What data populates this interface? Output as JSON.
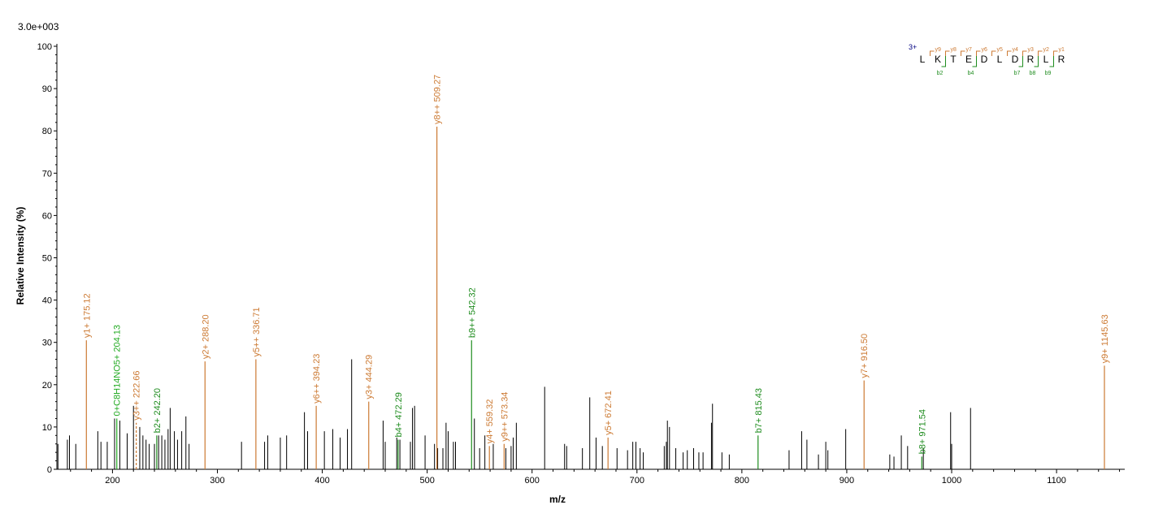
{
  "chart_data": {
    "type": "bar",
    "scale_label": "3.0e+003",
    "xlabel": "m/z",
    "ylabel": "Relative   Intensity (%)",
    "xlim": [
      147,
      1165
    ],
    "ylim": [
      0,
      100
    ],
    "x_ticks": [
      200,
      300,
      400,
      500,
      600,
      700,
      800,
      900,
      1000,
      1100
    ],
    "y_ticks": [
      0,
      10,
      20,
      30,
      40,
      50,
      60,
      70,
      80,
      90,
      100
    ],
    "colors": {
      "y_ion": "#cc7a33",
      "b_ion": "#1e8c1e",
      "other": "#000000",
      "special": "#22aa22"
    },
    "annotated_peaks": [
      {
        "mz": 175.12,
        "intensity": 30.5,
        "label": "y1+ 175.12",
        "ion": "y"
      },
      {
        "mz": 204.13,
        "intensity": 12.0,
        "label": "0+C8H14NO5+ 204.13",
        "ion": "special"
      },
      {
        "mz": 222.66,
        "intensity": 11.0,
        "label": "y3++ 222.66",
        "ion": "y",
        "dashed": true
      },
      {
        "mz": 242.2,
        "intensity": 8.0,
        "label": "b2+ 242.20",
        "ion": "b"
      },
      {
        "mz": 288.2,
        "intensity": 25.5,
        "label": "y2+ 288.20",
        "ion": "y"
      },
      {
        "mz": 336.71,
        "intensity": 26.0,
        "label": "y5++ 336.71",
        "ion": "y"
      },
      {
        "mz": 394.23,
        "intensity": 15.0,
        "label": "y6++ 394.23",
        "ion": "y"
      },
      {
        "mz": 444.29,
        "intensity": 16.0,
        "label": "y3+ 444.29",
        "ion": "y"
      },
      {
        "mz": 472.29,
        "intensity": 7.0,
        "label": "b4+ 472.29",
        "ion": "b"
      },
      {
        "mz": 509.27,
        "intensity": 81.0,
        "label": "y8++ 509.27",
        "ion": "y"
      },
      {
        "mz": 542.32,
        "intensity": 30.5,
        "label": "b9++ 542.32",
        "ion": "b"
      },
      {
        "mz": 559.32,
        "intensity": 5.5,
        "label": "y4+ 559.32",
        "ion": "y"
      },
      {
        "mz": 573.34,
        "intensity": 6.0,
        "label": "y9++ 573.34",
        "ion": "y"
      },
      {
        "mz": 672.41,
        "intensity": 7.5,
        "label": "y5+ 672.41",
        "ion": "y"
      },
      {
        "mz": 815.43,
        "intensity": 8.0,
        "label": "b7+ 815.43",
        "ion": "b"
      },
      {
        "mz": 916.5,
        "intensity": 21.0,
        "label": "y7+ 916.50",
        "ion": "y"
      },
      {
        "mz": 971.54,
        "intensity": 3.0,
        "label": "b8+ 971.54",
        "ion": "b"
      },
      {
        "mz": 1145.63,
        "intensity": 24.5,
        "label": "y9+ 1145.63",
        "ion": "y"
      }
    ],
    "other_peaks": [
      [
        148,
        6
      ],
      [
        157,
        7
      ],
      [
        159,
        8
      ],
      [
        165,
        6
      ],
      [
        186,
        9
      ],
      [
        189,
        6.5
      ],
      [
        195,
        6.5
      ],
      [
        202,
        12
      ],
      [
        207,
        11.5
      ],
      [
        214,
        8.5
      ],
      [
        220,
        15
      ],
      [
        226,
        10
      ],
      [
        229,
        8
      ],
      [
        232,
        7
      ],
      [
        235,
        6
      ],
      [
        240,
        6
      ],
      [
        244,
        8
      ],
      [
        247,
        8
      ],
      [
        250,
        7
      ],
      [
        253,
        9.5
      ],
      [
        255,
        14.5
      ],
      [
        259,
        9
      ],
      [
        262,
        7
      ],
      [
        266,
        9
      ],
      [
        270,
        12.5
      ],
      [
        273,
        6
      ],
      [
        323,
        6.5
      ],
      [
        345,
        6.5
      ],
      [
        348,
        8
      ],
      [
        360,
        7.5
      ],
      [
        366,
        8
      ],
      [
        383,
        13.5
      ],
      [
        386,
        9
      ],
      [
        402,
        9
      ],
      [
        410,
        9.5
      ],
      [
        417,
        7.5
      ],
      [
        424,
        9.5
      ],
      [
        428,
        26
      ],
      [
        458,
        11.5
      ],
      [
        460,
        6.5
      ],
      [
        471,
        7.5
      ],
      [
        474,
        7
      ],
      [
        484,
        6.5
      ],
      [
        486,
        14.5
      ],
      [
        488,
        15
      ],
      [
        498,
        8
      ],
      [
        507,
        6
      ],
      [
        510,
        5
      ],
      [
        515,
        5
      ],
      [
        518,
        11
      ],
      [
        520,
        9
      ],
      [
        525,
        6.5
      ],
      [
        527,
        6.5
      ],
      [
        545,
        12
      ],
      [
        550,
        5
      ],
      [
        555,
        8
      ],
      [
        563,
        6
      ],
      [
        575,
        5
      ],
      [
        580,
        5.5
      ],
      [
        582,
        7.5
      ],
      [
        585,
        11
      ],
      [
        612,
        19.5
      ],
      [
        631,
        6
      ],
      [
        633,
        5.5
      ],
      [
        648,
        5
      ],
      [
        655,
        17
      ],
      [
        661,
        7.5
      ],
      [
        667,
        5.5
      ],
      [
        681,
        5
      ],
      [
        691,
        4.5
      ],
      [
        696,
        6.5
      ],
      [
        699,
        6.5
      ],
      [
        703,
        5
      ],
      [
        706,
        4
      ],
      [
        726,
        5.5
      ],
      [
        728,
        6.5
      ],
      [
        729,
        11.5
      ],
      [
        731,
        10
      ],
      [
        737,
        5
      ],
      [
        744,
        4
      ],
      [
        748,
        4.5
      ],
      [
        754,
        5
      ],
      [
        759,
        4
      ],
      [
        763,
        4
      ],
      [
        771,
        11
      ],
      [
        772,
        15.5
      ],
      [
        781,
        4
      ],
      [
        788,
        3.5
      ],
      [
        845,
        4.5
      ],
      [
        857,
        9
      ],
      [
        862,
        7
      ],
      [
        873,
        3.5
      ],
      [
        880,
        6.5
      ],
      [
        882,
        4.5
      ],
      [
        899,
        9.5
      ],
      [
        941,
        3.5
      ],
      [
        945,
        3
      ],
      [
        952,
        8
      ],
      [
        958,
        5.5
      ],
      [
        973,
        5
      ],
      [
        999,
        13.5
      ],
      [
        1000,
        6
      ],
      [
        1018,
        14.5
      ]
    ],
    "sequence": {
      "charge": "3+",
      "residues": [
        "L",
        "K",
        "T",
        "E",
        "D",
        "L",
        "D",
        "R",
        "L",
        "R"
      ],
      "y_ions": [
        "y9",
        "y8",
        "y7",
        "y6",
        "y5",
        "y4",
        "y3",
        "y2",
        "y1"
      ],
      "b_ions": [
        "b2",
        "b4",
        "b7",
        "b8",
        "b9"
      ]
    }
  }
}
